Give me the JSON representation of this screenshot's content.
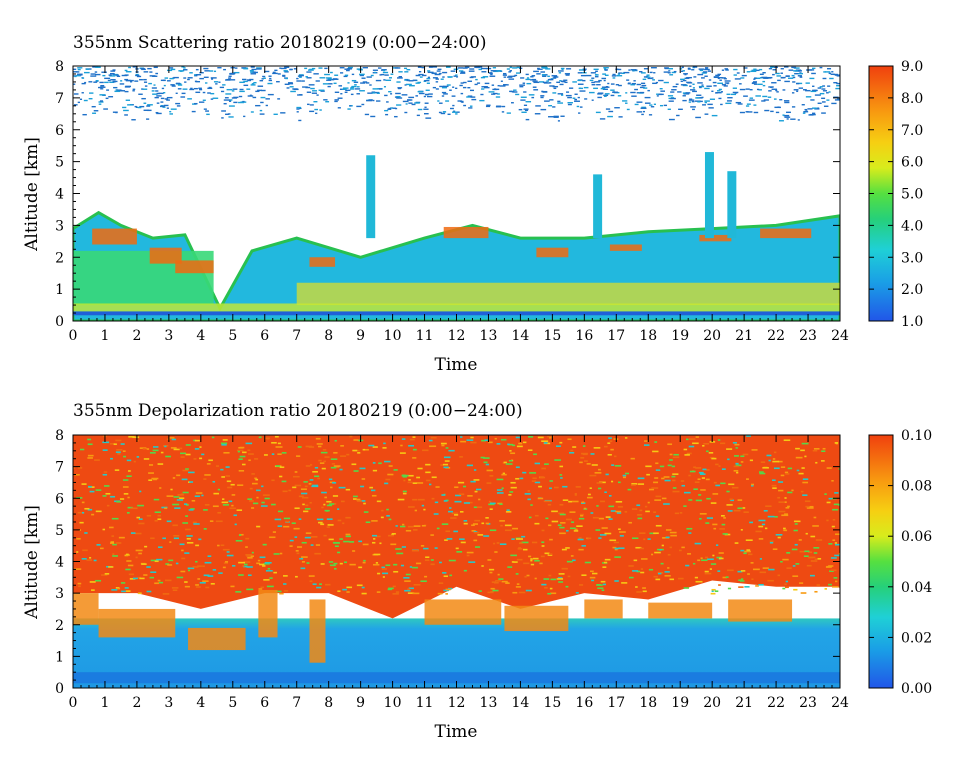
{
  "chart_data": [
    {
      "type": "heatmap",
      "title": "355nm Scattering ratio  20180219 (0:00−24:00)",
      "xlabel": "Time",
      "ylabel": "Altitude [km]",
      "xlim": [
        0,
        24
      ],
      "ylim": [
        0,
        8
      ],
      "x_ticks": [
        "0",
        "1",
        "2",
        "3",
        "4",
        "5",
        "6",
        "7",
        "8",
        "9",
        "10",
        "11",
        "12",
        "13",
        "14",
        "15",
        "16",
        "17",
        "18",
        "19",
        "20",
        "21",
        "22",
        "23",
        "24"
      ],
      "y_ticks": [
        "0",
        "1",
        "2",
        "3",
        "4",
        "5",
        "6",
        "7",
        "8"
      ],
      "colorbar": {
        "min": 1.0,
        "max": 9.0,
        "ticks": [
          "1.0",
          "2.0",
          "3.0",
          "4.0",
          "5.0",
          "6.0",
          "7.0",
          "8.0",
          "9.0"
        ]
      },
      "boundary_layer_top_km": [
        {
          "t": 0,
          "z": 2.9
        },
        {
          "t": 0.8,
          "z": 3.4
        },
        {
          "t": 1.5,
          "z": 3.0
        },
        {
          "t": 2.5,
          "z": 2.6
        },
        {
          "t": 3.5,
          "z": 2.7
        },
        {
          "t": 4.6,
          "z": 0.4
        },
        {
          "t": 5.6,
          "z": 2.2
        },
        {
          "t": 7,
          "z": 2.6
        },
        {
          "t": 8,
          "z": 2.3
        },
        {
          "t": 9,
          "z": 2.0
        },
        {
          "t": 11,
          "z": 2.6
        },
        {
          "t": 12.5,
          "z": 3.0
        },
        {
          "t": 14,
          "z": 2.6
        },
        {
          "t": 16,
          "z": 2.6
        },
        {
          "t": 18,
          "z": 2.8
        },
        {
          "t": 20,
          "z": 2.9
        },
        {
          "t": 22,
          "z": 3.0
        },
        {
          "t": 24,
          "z": 3.3
        }
      ]
    },
    {
      "type": "heatmap",
      "title": "355nm Depolarization ratio  20180219 (0:00−24:00)",
      "xlabel": "Time",
      "ylabel": "Altitude [km]",
      "xlim": [
        0,
        24
      ],
      "ylim": [
        0,
        8
      ],
      "x_ticks": [
        "0",
        "1",
        "2",
        "3",
        "4",
        "5",
        "6",
        "7",
        "8",
        "9",
        "10",
        "11",
        "12",
        "13",
        "14",
        "15",
        "16",
        "17",
        "18",
        "19",
        "20",
        "21",
        "22",
        "23",
        "24"
      ],
      "y_ticks": [
        "0",
        "1",
        "2",
        "3",
        "4",
        "5",
        "6",
        "7",
        "8"
      ],
      "colorbar": {
        "min": 0.0,
        "max": 0.1,
        "ticks": [
          "0.00",
          "0.02",
          "0.04",
          "0.06",
          "0.08",
          "0.10"
        ]
      },
      "noise_onset_km": [
        {
          "t": 0,
          "z": 3.0
        },
        {
          "t": 2,
          "z": 3.0
        },
        {
          "t": 4,
          "z": 2.5
        },
        {
          "t": 6,
          "z": 3.0
        },
        {
          "t": 8,
          "z": 3.0
        },
        {
          "t": 10,
          "z": 2.2
        },
        {
          "t": 12,
          "z": 3.2
        },
        {
          "t": 14,
          "z": 2.5
        },
        {
          "t": 16,
          "z": 3.0
        },
        {
          "t": 18,
          "z": 2.8
        },
        {
          "t": 20,
          "z": 3.4
        },
        {
          "t": 22,
          "z": 3.2
        },
        {
          "t": 24,
          "z": 3.2
        }
      ]
    }
  ]
}
